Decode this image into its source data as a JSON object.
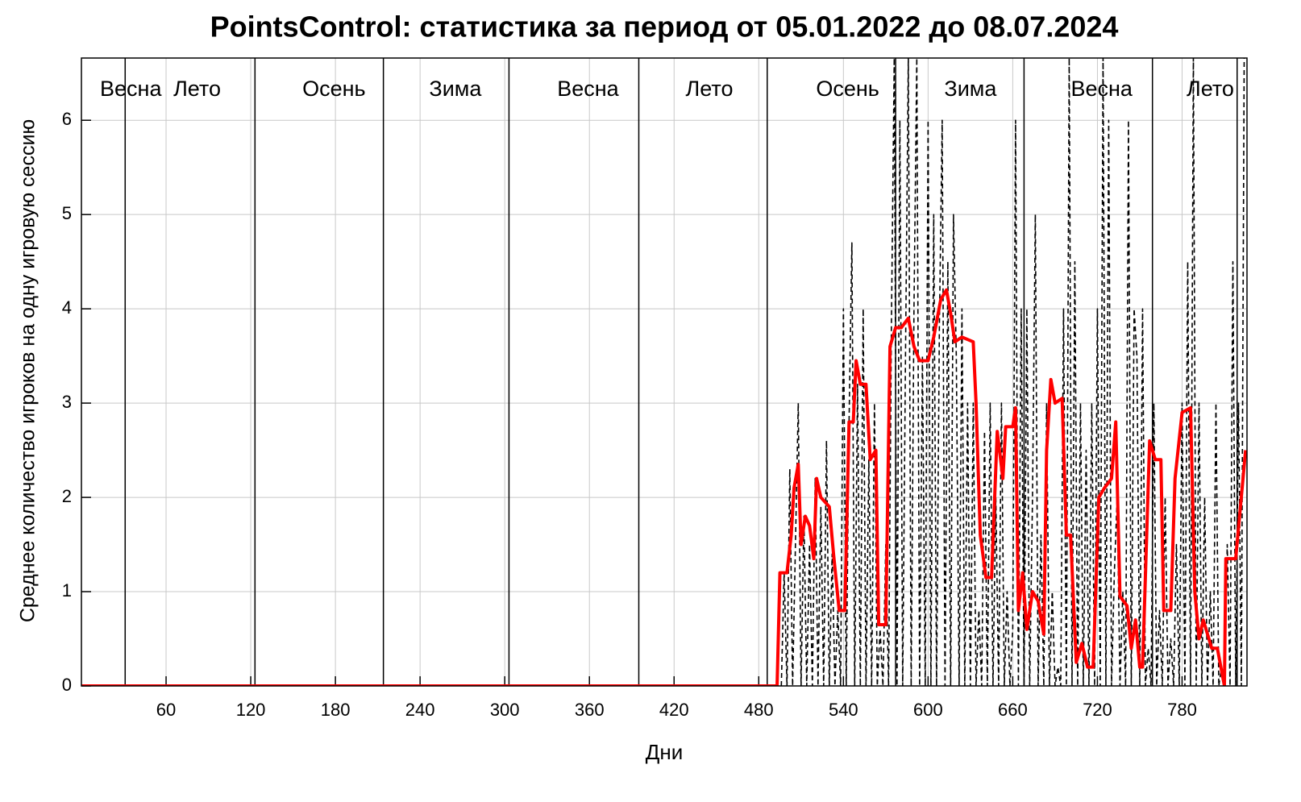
{
  "chart_data": {
    "type": "line",
    "title": "PointsControl: статистика за период от 05.01.2022 до 08.07.2024",
    "x_label": "Дни",
    "y_label": "Среднее количество игроков на одну игровую сессию",
    "xlim": [
      0,
      826
    ],
    "ylim": [
      0,
      6.66
    ],
    "xticks": [
      60,
      120,
      180,
      240,
      300,
      360,
      420,
      480,
      540,
      600,
      660,
      720,
      780
    ],
    "yticks": [
      0,
      1,
      2,
      3,
      4,
      5,
      6
    ],
    "grid": true,
    "season_dividers": [
      31,
      123,
      214,
      303,
      395,
      486,
      577,
      668,
      759,
      819
    ],
    "season_labels": [
      {
        "label": "Весна",
        "x": 35
      },
      {
        "label": "Лето",
        "x": 82
      },
      {
        "label": "Осень",
        "x": 179
      },
      {
        "label": "Зима",
        "x": 265
      },
      {
        "label": "Весна",
        "x": 359
      },
      {
        "label": "Лето",
        "x": 445
      },
      {
        "label": "Осень",
        "x": 543
      },
      {
        "label": "Зима",
        "x": 630
      },
      {
        "label": "Весна",
        "x": 723
      },
      {
        "label": "Лето",
        "x": 800
      }
    ],
    "series": [
      {
        "color": "#000000",
        "style": "dashed",
        "x": [
          496,
          498,
          500,
          502,
          504,
          506,
          508,
          510,
          512,
          514,
          516,
          518,
          520,
          522,
          524,
          526,
          528,
          530,
          532,
          534,
          536,
          538,
          540,
          542,
          544,
          546,
          548,
          550,
          552,
          554,
          556,
          558,
          560,
          562,
          564,
          566,
          568,
          570,
          572,
          574,
          576,
          578,
          580,
          582,
          584,
          586,
          588,
          590,
          592,
          594,
          596,
          598,
          600,
          602,
          604,
          606,
          608,
          610,
          612,
          614,
          616,
          618,
          620,
          622,
          624,
          626,
          628,
          630,
          632,
          634,
          636,
          638,
          640,
          642,
          644,
          646,
          648,
          650,
          652,
          654,
          656,
          658,
          660,
          662,
          664,
          666,
          668,
          670,
          672,
          674,
          676,
          678,
          680,
          682,
          684,
          686,
          688,
          690,
          692,
          694,
          696,
          698,
          700,
          702,
          704,
          706,
          708,
          710,
          712,
          714,
          716,
          718,
          720,
          722,
          724,
          726,
          728,
          730,
          732,
          734,
          736,
          738,
          740,
          742,
          744,
          746,
          748,
          750,
          752,
          754,
          756,
          758,
          760,
          762,
          764,
          766,
          768,
          770,
          772,
          774,
          776,
          778,
          780,
          782,
          784,
          786,
          788,
          790,
          792,
          794,
          796,
          798,
          800,
          802,
          804,
          806,
          808,
          810,
          812,
          814,
          816,
          818,
          820,
          822,
          824
        ],
        "values": [
          0,
          1.2,
          0,
          2.3,
          0,
          1.5,
          3.0,
          0,
          1.8,
          0,
          1.5,
          0,
          2.2,
          0,
          1.9,
          0,
          2.6,
          0,
          1.4,
          0,
          0.8,
          0,
          4.0,
          0,
          2.8,
          4.7,
          0,
          3.2,
          0,
          4.0,
          0,
          2.4,
          0,
          3.0,
          0,
          0.6,
          0,
          1.5,
          0,
          3.8,
          6.66,
          0,
          6.0,
          0,
          3.5,
          6.66,
          0,
          4.0,
          6.66,
          0,
          3.5,
          0,
          6.0,
          0,
          5.0,
          0,
          3.8,
          6.0,
          0,
          4.5,
          0,
          5.0,
          3.5,
          0,
          4.0,
          0,
          3.0,
          0,
          3.0,
          0,
          0.8,
          0,
          2.7,
          0,
          3.0,
          0,
          2.0,
          0,
          3.0,
          0,
          1.0,
          0,
          0.6,
          6.0,
          0,
          4.0,
          0,
          4.0,
          0,
          2.0,
          5.0,
          0,
          1.6,
          0,
          3.0,
          0,
          1.0,
          0,
          0.2,
          0,
          4.0,
          0,
          6.66,
          0,
          4.5,
          0,
          3.0,
          0,
          2.5,
          0,
          3.0,
          0,
          4.0,
          0,
          6.66,
          0,
          6.0,
          0,
          1.2,
          2.0,
          0,
          1.0,
          0,
          6.0,
          0,
          4.0,
          3.5,
          0,
          4.0,
          0,
          0.4,
          0,
          3.0,
          0,
          0.8,
          0,
          2.0,
          0,
          0.5,
          0,
          1.5,
          0,
          3.0,
          0,
          4.5,
          0,
          6.66,
          0,
          3.0,
          0,
          2.0,
          0,
          1.0,
          0,
          3.0,
          0,
          0.2,
          0,
          1.5,
          0,
          4.5,
          0,
          3.0,
          0,
          6.66
        ]
      },
      {
        "color": "#ff0000",
        "style": "solid",
        "x": [
          0,
          493,
          495,
          500,
          503,
          505,
          508,
          510,
          513,
          516,
          519,
          521,
          524,
          530,
          533,
          537,
          541,
          544,
          547,
          549,
          552,
          556,
          559,
          563,
          565,
          570,
          573,
          577,
          581,
          586,
          590,
          594,
          600,
          604,
          609,
          613,
          616,
          619,
          624,
          632,
          634,
          637,
          641,
          645,
          649,
          653,
          655,
          660,
          662,
          664,
          667,
          670,
          674,
          678,
          682,
          684,
          687,
          690,
          695,
          698,
          701,
          705,
          709,
          713,
          717,
          721,
          725,
          730,
          733,
          736,
          741,
          744,
          747,
          750,
          752,
          757,
          761,
          765,
          767,
          772,
          775,
          780,
          786,
          789,
          792,
          795,
          801,
          805,
          810,
          811,
          818,
          825
        ],
        "values": [
          0,
          0,
          1.2,
          1.2,
          1.6,
          2.1,
          2.35,
          1.5,
          1.8,
          1.7,
          1.35,
          2.2,
          2.0,
          1.9,
          1.4,
          0.8,
          0.8,
          2.8,
          2.8,
          3.45,
          3.2,
          3.2,
          2.4,
          2.5,
          0.65,
          0.65,
          3.6,
          3.8,
          3.8,
          3.9,
          3.6,
          3.45,
          3.45,
          3.7,
          4.1,
          4.2,
          3.95,
          3.65,
          3.7,
          3.65,
          3.0,
          1.6,
          1.15,
          1.15,
          2.7,
          2.2,
          2.75,
          2.75,
          2.95,
          0.8,
          1.2,
          0.6,
          1.0,
          0.9,
          0.55,
          2.5,
          3.25,
          3.0,
          3.05,
          1.6,
          1.6,
          0.25,
          0.45,
          0.2,
          0.2,
          2.0,
          2.1,
          2.2,
          2.8,
          0.95,
          0.85,
          0.4,
          0.7,
          0.2,
          0.2,
          2.6,
          2.4,
          2.4,
          0.8,
          0.8,
          2.2,
          2.9,
          2.95,
          1.0,
          0.5,
          0.7,
          0.4,
          0.4,
          0.0,
          1.35,
          1.35,
          2.5
        ]
      }
    ]
  }
}
